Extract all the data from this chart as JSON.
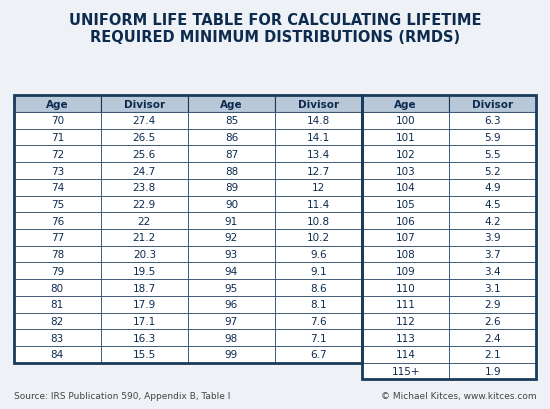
{
  "title": "UNIFORM LIFE TABLE FOR CALCULATING LIFETIME\nREQUIRED MINIMUM DISTRIBUTIONS (RMDS)",
  "title_fontsize": 10.5,
  "title_color": "#0d2b4e",
  "background_color": "#eef1f5",
  "table_bg_white": "#ffffff",
  "header_bg": "#b8c8d8",
  "header_text_color": "#0d2b4e",
  "cell_text_color": "#0d2b4e",
  "border_color": "#1a3a5c",
  "footer_left": "Source: IRS Publication 590, Appendix B, Table I",
  "footer_right": "© Michael Kitces, www.kitces.com",
  "footer_fontsize": 6.5,
  "col1_age": [
    70,
    71,
    72,
    73,
    74,
    75,
    76,
    77,
    78,
    79,
    80,
    81,
    82,
    83,
    84
  ],
  "col1_div": [
    "27.4",
    "26.5",
    "25.6",
    "24.7",
    "23.8",
    "22.9",
    "22",
    "21.2",
    "20.3",
    "19.5",
    "18.7",
    "17.9",
    "17.1",
    "16.3",
    "15.5"
  ],
  "col2_age": [
    85,
    86,
    87,
    88,
    89,
    90,
    91,
    92,
    93,
    94,
    95,
    96,
    97,
    98,
    99
  ],
  "col2_div": [
    "14.8",
    "14.1",
    "13.4",
    "12.7",
    "12",
    "11.4",
    "10.8",
    "10.2",
    "9.6",
    "9.1",
    "8.6",
    "8.1",
    "7.6",
    "7.1",
    "6.7"
  ],
  "col3_age": [
    "100",
    "101",
    "102",
    "103",
    "104",
    "105",
    "106",
    "107",
    "108",
    "109",
    "110",
    "111",
    "112",
    "113",
    "114",
    "115+"
  ],
  "col3_div": [
    "6.3",
    "5.9",
    "5.5",
    "5.2",
    "4.9",
    "4.5",
    "4.2",
    "3.9",
    "3.7",
    "3.4",
    "3.1",
    "2.9",
    "2.6",
    "2.4",
    "2.1",
    "1.9"
  ]
}
